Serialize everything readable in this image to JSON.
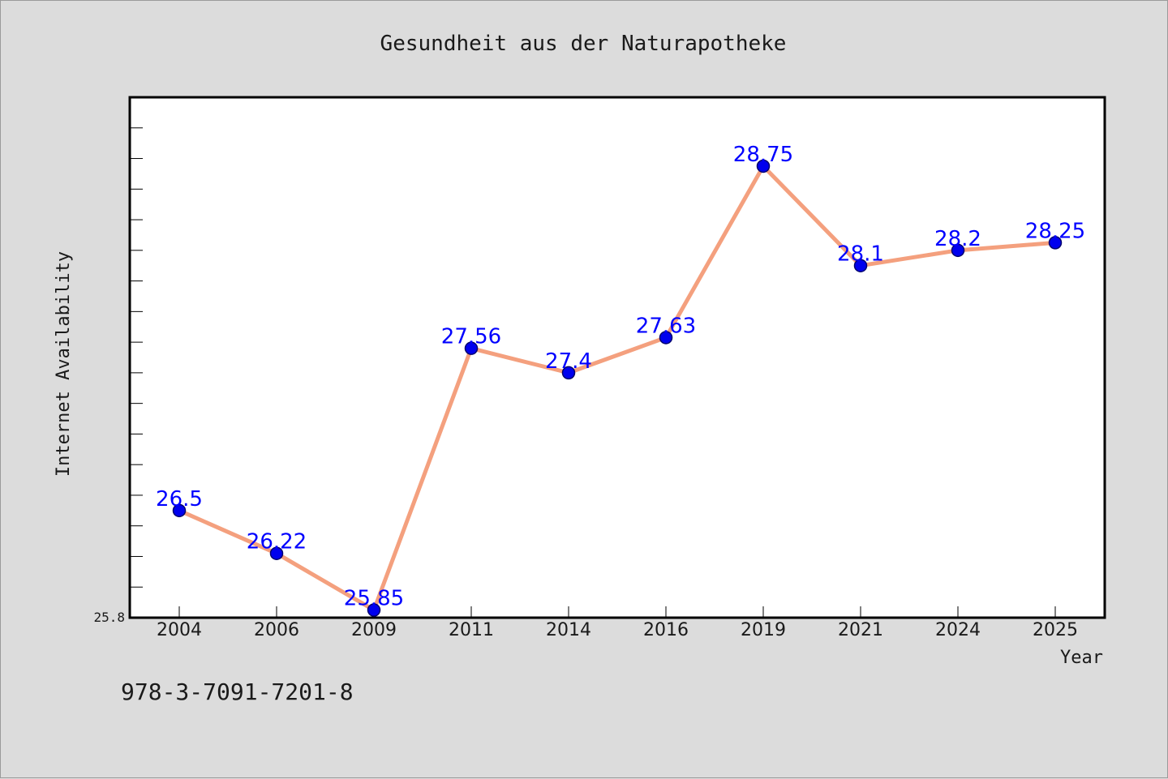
{
  "chart_data": {
    "type": "line",
    "title": "Gesundheit aus der Naturapotheke",
    "xlabel": "Year",
    "ylabel": "Internet Availability",
    "categories": [
      "2004",
      "2006",
      "2009",
      "2011",
      "2014",
      "2016",
      "2019",
      "2021",
      "2024",
      "2025"
    ],
    "series": [
      {
        "values": [
          26.5,
          26.22,
          25.85,
          27.56,
          27.4,
          27.63,
          28.75,
          28.1,
          28.2,
          28.25
        ]
      }
    ],
    "data_labels": [
      "26.5",
      "26.22",
      "25.85",
      "27.56",
      "27.4",
      "27.63",
      "28.75",
      "28.1",
      "28.2",
      "28.25"
    ],
    "y_tick_label": "25.8",
    "ylim": [
      25.8,
      29.2
    ],
    "grid": false,
    "legend": "none",
    "colors": {
      "line": "#f4a07e",
      "marker": "#0000ee",
      "label": "#0000ff",
      "background": "#dcdcdc",
      "plot_bg": "#ffffff"
    }
  },
  "footer": {
    "isbn": "978-3-7091-7201-8"
  }
}
